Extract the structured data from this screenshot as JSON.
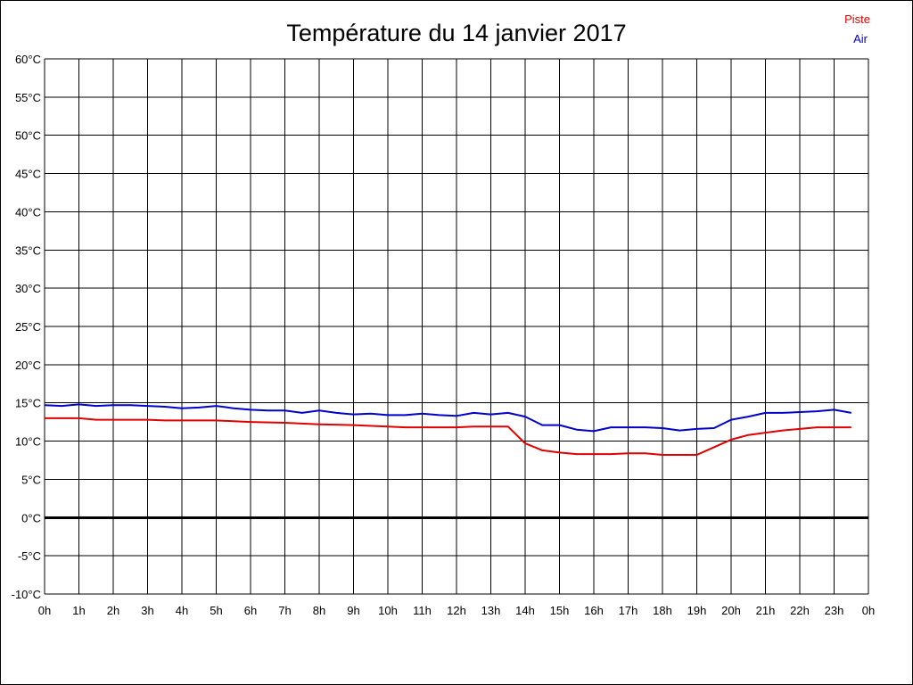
{
  "chart_data": {
    "type": "line",
    "title": "Température du 14 janvier 2017",
    "xlabel": "",
    "ylabel": "",
    "x_tick_labels": [
      "0h",
      "1h",
      "2h",
      "3h",
      "4h",
      "5h",
      "6h",
      "7h",
      "8h",
      "9h",
      "10h",
      "11h",
      "12h",
      "13h",
      "14h",
      "15h",
      "16h",
      "17h",
      "18h",
      "19h",
      "20h",
      "21h",
      "22h",
      "23h",
      "0h"
    ],
    "y_tick_labels": [
      "-10°C",
      "-5°C",
      "0°C",
      "5°C",
      "10°C",
      "15°C",
      "20°C",
      "25°C",
      "30°C",
      "35°C",
      "40°C",
      "45°C",
      "50°C",
      "55°C",
      "60°C"
    ],
    "xlim": [
      0,
      24
    ],
    "ylim": [
      -10,
      60
    ],
    "y_step": 5,
    "grid": true,
    "legend_position": "top-right",
    "zero_line": true,
    "series": [
      {
        "name": "Piste",
        "color": "#e00000",
        "x": [
          0,
          1,
          1.5,
          2,
          3,
          3.5,
          4,
          5,
          6,
          7,
          8,
          9,
          10,
          10.5,
          11,
          12,
          12.5,
          13,
          13.5,
          14,
          14.5,
          15,
          15.5,
          16,
          16.5,
          17,
          17.5,
          18,
          18.5,
          19,
          19.5,
          20,
          20.5,
          21,
          21.5,
          22,
          22.5,
          23,
          23.5
        ],
        "y": [
          13,
          13,
          12.8,
          12.8,
          12.8,
          12.7,
          12.7,
          12.7,
          12.5,
          12.4,
          12.2,
          12.1,
          11.9,
          11.8,
          11.8,
          11.8,
          11.9,
          11.9,
          11.9,
          9.7,
          8.8,
          8.5,
          8.3,
          8.3,
          8.3,
          8.4,
          8.4,
          8.2,
          8.2,
          8.2,
          9.2,
          10.2,
          10.8,
          11.1,
          11.4,
          11.6,
          11.8,
          11.8,
          11.8
        ]
      },
      {
        "name": "Air",
        "color": "#0000cc",
        "x": [
          0,
          0.5,
          1,
          1.5,
          2,
          2.5,
          3,
          3.5,
          4,
          4.5,
          5,
          5.5,
          6,
          6.5,
          7,
          7.5,
          8,
          8.5,
          9,
          9.5,
          10,
          10.5,
          11,
          11.5,
          12,
          12.5,
          13,
          13.5,
          14,
          14.5,
          15,
          15.5,
          16,
          16.5,
          17,
          17.5,
          18,
          18.5,
          19,
          19.5,
          20,
          20.5,
          21,
          21.5,
          22,
          22.5,
          23,
          23.5
        ],
        "y": [
          14.7,
          14.6,
          14.8,
          14.6,
          14.7,
          14.7,
          14.6,
          14.5,
          14.3,
          14.4,
          14.6,
          14.3,
          14.1,
          14,
          14,
          13.7,
          14,
          13.7,
          13.5,
          13.6,
          13.4,
          13.4,
          13.6,
          13.4,
          13.3,
          13.7,
          13.5,
          13.7,
          13.2,
          12.1,
          12.1,
          11.5,
          11.3,
          11.8,
          11.8,
          11.8,
          11.7,
          11.4,
          11.6,
          11.7,
          12.8,
          13.2,
          13.7,
          13.7,
          13.8,
          13.9,
          14.1,
          13.7
        ]
      }
    ]
  }
}
